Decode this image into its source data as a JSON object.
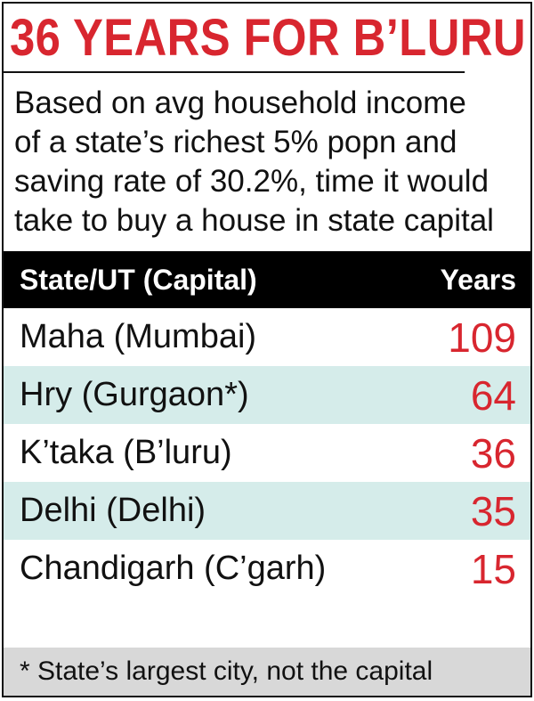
{
  "chart_data": {
    "type": "table",
    "title": "36 YEARS FOR B’LURU",
    "subtitle_lines": [
      "Based on avg household income",
      "of a state’s richest 5% popn and",
      "saving rate of 30.2%, time it would",
      "take to buy a house in state capital"
    ],
    "columns": [
      "State/UT (Capital)",
      "Years"
    ],
    "rows": [
      {
        "label": "Maha (Mumbai)",
        "value": "109"
      },
      {
        "label": "Hry (Gurgaon*)",
        "value": "64"
      },
      {
        "label": "K’taka (B’luru)",
        "value": "36"
      },
      {
        "label": "Delhi (Delhi)",
        "value": "35"
      },
      {
        "label": "Chandigarh (C’garh)",
        "value": "15"
      }
    ],
    "footnote": "* State’s largest city, not the capital"
  },
  "colors": {
    "title_red": "#d8262f",
    "header_bg": "#000000",
    "row_shade": "#d5ecea",
    "footnote_bg": "#d8d8d8"
  }
}
